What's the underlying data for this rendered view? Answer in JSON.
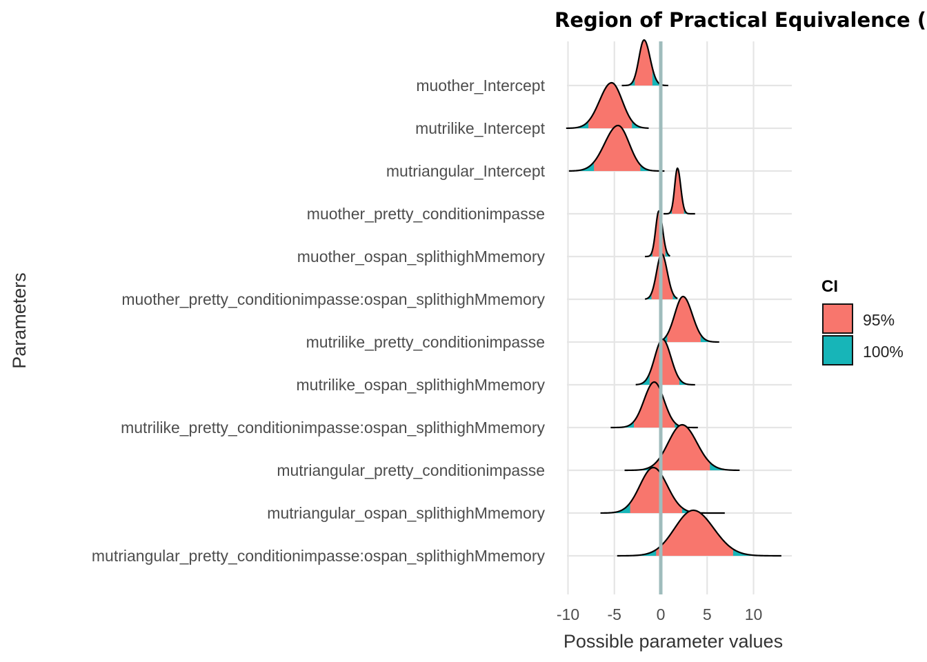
{
  "chart_data": {
    "type": "ridgeline",
    "title": "Region of Practical Equivalence (ROPE",
    "xlabel": "Possible parameter values",
    "ylabel": "Parameters",
    "xlim": [
      -12.5,
      14
    ],
    "xticks": [
      -10,
      -5,
      0,
      5,
      10
    ],
    "grid": true,
    "rope_line": 0,
    "legend": {
      "title": "CI",
      "placement": "right",
      "entries": [
        {
          "label": "95%",
          "color": "#F8766D"
        },
        {
          "label": "100%",
          "color": "#00BFC4"
        }
      ]
    },
    "colors": {
      "ci95": "#F8766D",
      "ci100": "#17B5B8",
      "rope_line": "#9fbcbc",
      "grid": "#e5e5e5"
    },
    "parameters": [
      {
        "name": "muother_Intercept",
        "mode": -1.8,
        "sd_left": 0.55,
        "sd_right": 0.65,
        "min": -4.2,
        "max": 0.8,
        "ci95": [
          -2.8,
          -0.9
        ]
      },
      {
        "name": "mutrilike_Intercept",
        "mode": -5.3,
        "sd_left": 1.3,
        "sd_right": 1.15,
        "min": -10.2,
        "max": -1.3,
        "ci95": [
          -7.8,
          -3.1
        ]
      },
      {
        "name": "mutriangular_Intercept",
        "mode": -4.6,
        "sd_left": 1.45,
        "sd_right": 1.2,
        "min": -9.9,
        "max": 0.4,
        "ci95": [
          -7.2,
          -2.2
        ]
      },
      {
        "name": "muother_pretty_conditionimpasse",
        "mode": 1.8,
        "sd_left": 0.3,
        "sd_right": 0.35,
        "min": 0.3,
        "max": 3.7,
        "ci95": [
          1.2,
          2.5
        ]
      },
      {
        "name": "muother_ospan_splithighMmemory",
        "mode": -0.2,
        "sd_left": 0.35,
        "sd_right": 0.4,
        "min": -1.7,
        "max": 1.0,
        "ci95": [
          -0.9,
          0.5
        ]
      },
      {
        "name": "muother_pretty_conditionimpasse:ospan_splithighMmemory",
        "mode": 0.1,
        "sd_left": 0.55,
        "sd_right": 0.6,
        "min": -1.7,
        "max": 1.8,
        "ci95": [
          -1.0,
          1.3
        ]
      },
      {
        "name": "mutrilike_pretty_conditionimpasse",
        "mode": 2.4,
        "sd_left": 0.9,
        "sd_right": 1.0,
        "min": 0.3,
        "max": 6.3,
        "ci95": [
          0.7,
          4.3
        ]
      },
      {
        "name": "mutrilike_ospan_splithighMmemory",
        "mode": 0.2,
        "sd_left": 0.85,
        "sd_right": 0.9,
        "min": -2.7,
        "max": 3.7,
        "ci95": [
          -1.2,
          2.0
        ]
      },
      {
        "name": "mutrilike_pretty_conditionimpasse:ospan_splithighMmemory",
        "mode": -0.7,
        "sd_left": 1.1,
        "sd_right": 1.05,
        "min": -5.4,
        "max": 4.0,
        "ci95": [
          -2.9,
          1.5
        ]
      },
      {
        "name": "mutriangular_pretty_conditionimpasse",
        "mode": 2.3,
        "sd_left": 1.5,
        "sd_right": 1.6,
        "min": -3.9,
        "max": 8.5,
        "ci95": [
          -0.8,
          5.3
        ]
      },
      {
        "name": "mutriangular_ospan_splithighMmemory",
        "mode": -0.8,
        "sd_left": 1.45,
        "sd_right": 1.5,
        "min": -6.5,
        "max": 6.9,
        "ci95": [
          -3.3,
          2.3
        ]
      },
      {
        "name": "mutriangular_pretty_conditionimpasse:ospan_splithighMmemory",
        "mode": 3.5,
        "sd_left": 2.0,
        "sd_right": 2.2,
        "min": -4.7,
        "max": 13.0,
        "ci95": [
          -0.5,
          7.8
        ]
      }
    ]
  }
}
